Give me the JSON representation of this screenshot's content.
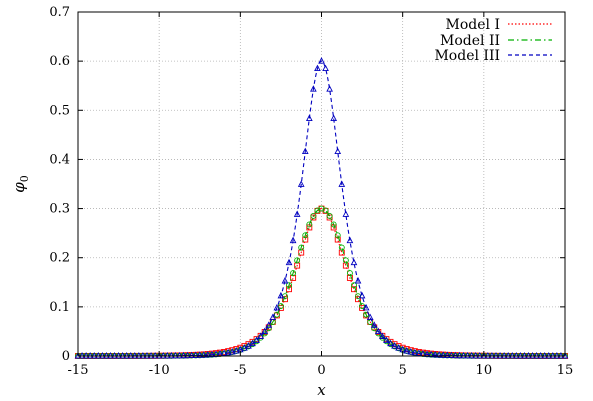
{
  "chart_data": {
    "type": "line",
    "title": "",
    "xlabel": "x",
    "ylabel": "φ",
    "ylabel_sub": "0",
    "xlim": [
      -15,
      15
    ],
    "ylim": [
      0,
      0.7
    ],
    "x_ticks": [
      "-15",
      "-10",
      "-5",
      "0",
      "5",
      "10",
      "15"
    ],
    "x_tick_values": [
      -15,
      -10,
      -5,
      0,
      5,
      10,
      15
    ],
    "y_ticks": [
      "0",
      "0.1",
      "0.2",
      "0.3",
      "0.4",
      "0.5",
      "0.6",
      "0.7"
    ],
    "y_tick_values": [
      0,
      0.1,
      0.2,
      0.3,
      0.4,
      0.5,
      0.6,
      0.7
    ],
    "grid": true,
    "legend_position": "top-right",
    "series": [
      {
        "name": "Model I",
        "color": "#ff0000",
        "line_style": "dotted",
        "marker": "square",
        "peak": 0.3,
        "profile": "sech",
        "width": 1.4
      },
      {
        "name": "Model II",
        "color": "#00b000",
        "line_style": "dash-dot",
        "marker": "circle",
        "peak": 0.3,
        "profile": "sech2",
        "width": 2.2
      },
      {
        "name": "Model III",
        "color": "#0000c0",
        "line_style": "dashed",
        "marker": "triangle",
        "peak": 0.6,
        "profile": "sech",
        "width": 1.1
      }
    ]
  }
}
